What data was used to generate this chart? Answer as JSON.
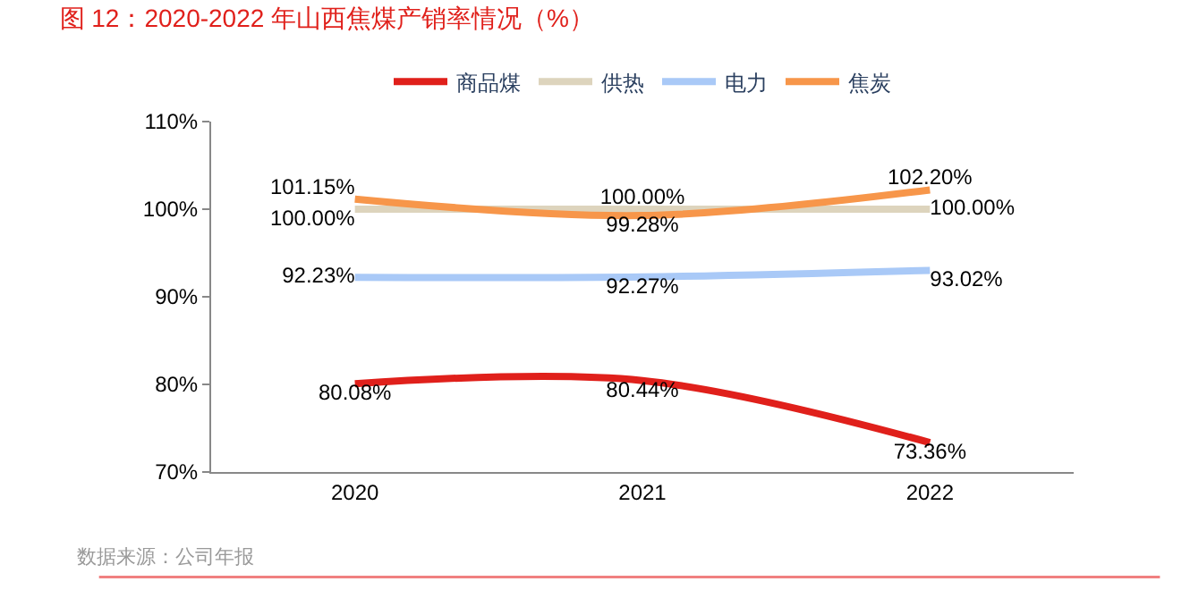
{
  "chart_data": {
    "type": "line",
    "title": "图 12：2020-2022 年山西焦煤产销率情况（%）",
    "categories": [
      "2020",
      "2021",
      "2022"
    ],
    "series": [
      {
        "name": "商品煤",
        "color": "#e0201b",
        "values": [
          80.08,
          80.44,
          73.36
        ],
        "value_labels": [
          "80.08%",
          "80.44%",
          "73.36%"
        ]
      },
      {
        "name": "供热",
        "color": "#ddd4bd",
        "values": [
          100.0,
          100.0,
          100.0
        ],
        "value_labels": [
          "100.00%",
          "100.00%",
          "100.00%"
        ]
      },
      {
        "name": "电力",
        "color": "#a9c9f7",
        "values": [
          92.23,
          92.27,
          93.02
        ],
        "value_labels": [
          "92.23%",
          "92.27%",
          "93.02%"
        ]
      },
      {
        "name": "焦炭",
        "color": "#f7964a",
        "values": [
          101.15,
          99.28,
          102.2
        ],
        "value_labels": [
          "101.15%",
          "99.28%",
          "102.20%"
        ]
      }
    ],
    "ylim": [
      70,
      110
    ],
    "yticks": [
      {
        "value": 70,
        "label": "70%"
      },
      {
        "value": 80,
        "label": "80%"
      },
      {
        "value": 90,
        "label": "90%"
      },
      {
        "value": 100,
        "label": "100%"
      },
      {
        "value": 110,
        "label": "110%"
      }
    ],
    "legend": "top",
    "marker": "none",
    "line_style": "solid",
    "annotations": [
      "数据来源：公司年报"
    ]
  }
}
